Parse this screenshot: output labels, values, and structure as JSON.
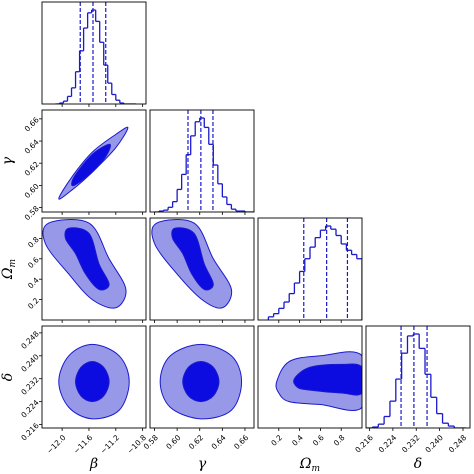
{
  "chart_data": {
    "type": "corner",
    "line_color": "#1a1acc",
    "fill_colors": [
      "#9898e8",
      "#0c0ce0"
    ],
    "parameters": [
      {
        "name": "β",
        "lim": [
          -12.3,
          -10.75
        ],
        "ticks": [
          {
            "value": -12.0,
            "label": "−12.0"
          },
          {
            "value": -11.6,
            "label": "−11.6"
          },
          {
            "value": -11.2,
            "label": "−11.2"
          },
          {
            "value": -10.8,
            "label": "−10.8"
          }
        ],
        "bins": [
          -12.1,
          -12.04,
          -11.98,
          -11.92,
          -11.86,
          -11.8,
          -11.74,
          -11.68,
          -11.62,
          -11.56,
          -11.5,
          -11.44,
          -11.38,
          -11.32,
          -11.26,
          -11.2,
          -11.14,
          -11.08,
          -11.02,
          -10.96,
          -10.9
        ],
        "counts": [
          0,
          1,
          3,
          8,
          17,
          34,
          56,
          80,
          96,
          99,
          87,
          65,
          41,
          22,
          10,
          4,
          1,
          0,
          0,
          0
        ],
        "quantiles": [
          -11.73,
          -11.54,
          -11.35
        ]
      },
      {
        "name": "γ",
        "lim": [
          0.576,
          0.668
        ],
        "ticks": [
          0.58,
          {
            "value": 0.6,
            "label": "0.60"
          },
          0.62,
          0.64,
          0.66
        ],
        "bins": [
          0.58,
          0.584,
          0.588,
          0.592,
          0.596,
          0.6,
          0.604,
          0.608,
          0.612,
          0.616,
          0.62,
          0.624,
          0.628,
          0.632,
          0.636,
          0.64,
          0.644,
          0.648,
          0.652,
          0.656,
          0.66,
          0.664,
          0.668
        ],
        "counts": [
          0,
          1,
          2,
          5,
          11,
          24,
          40,
          61,
          81,
          96,
          100,
          90,
          72,
          50,
          30,
          16,
          8,
          3,
          1,
          1,
          0,
          0
        ],
        "quantiles": [
          0.6096,
          0.621,
          0.6317
        ]
      },
      {
        "name": "Ω",
        "subscript": "m",
        "lim": [
          0,
          1
        ],
        "ticks": [
          0.2,
          0.4,
          0.6,
          0.8
        ],
        "bins": [
          0.1,
          0.15,
          0.2,
          0.25,
          0.3,
          0.35,
          0.4,
          0.45,
          0.5,
          0.55,
          0.6,
          0.65,
          0.7,
          0.75,
          0.8,
          0.85,
          0.9,
          0.95,
          1.0
        ],
        "counts": [
          3,
          6,
          11,
          17,
          25,
          35,
          46,
          58,
          69,
          78,
          85,
          89,
          86,
          80,
          72,
          66,
          62,
          58
        ],
        "quantiles": [
          0.44,
          0.66,
          0.86
        ]
      },
      {
        "name": "δ",
        "lim": [
          0.2148,
          0.2504
        ],
        "ticks": [
          0.216,
          0.224,
          0.232,
          {
            "value": 0.24,
            "label": "0.240"
          },
          0.248
        ],
        "bins": [
          0.215,
          0.217,
          0.219,
          0.221,
          0.223,
          0.225,
          0.227,
          0.229,
          0.231,
          0.233,
          0.235,
          0.237,
          0.239,
          0.241,
          0.243,
          0.245,
          0.247,
          0.249
        ],
        "counts": [
          0,
          1,
          4,
          12,
          28,
          51,
          78,
          96,
          98,
          83,
          56,
          32,
          15,
          5,
          2,
          0,
          0
        ],
        "quantiles": [
          0.2268,
          0.2312,
          0.2357
        ]
      }
    ],
    "contours": [
      {
        "levels": [
          {
            "x": [
              -12.05,
              -11.85,
              -11.55,
              -11.2,
              -11.02,
              -11.2,
              -11.55,
              -11.85
            ],
            "y": [
              0.588,
              0.596,
              0.612,
              0.634,
              0.652,
              0.646,
              0.63,
              0.608
            ]
          },
          {
            "x": [
              -11.82,
              -11.55,
              -11.35,
              -11.28,
              -11.35,
              -11.55,
              -11.75,
              -11.85
            ],
            "y": [
              0.6,
              0.612,
              0.626,
              0.636,
              0.636,
              0.628,
              0.614,
              0.604
            ]
          }
        ]
      },
      {
        "levels": [
          {
            "x": [
              -12.2,
              -11.6,
              -11.3,
              -11.05,
              -11.2,
              -11.55,
              -11.9,
              -12.25
            ],
            "y": [
              0.95,
              0.95,
              0.6,
              0.3,
              0.12,
              0.2,
              0.45,
              0.75
            ]
          },
          {
            "x": [
              -11.9,
              -11.6,
              -11.45,
              -11.3,
              -11.45,
              -11.65,
              -11.8,
              -11.95
            ],
            "y": [
              0.9,
              0.85,
              0.55,
              0.35,
              0.3,
              0.45,
              0.65,
              0.8
            ]
          }
        ]
      },
      {
        "levels": [
          {
            "x": [
              0.582,
              0.615,
              0.632,
              0.648,
              0.64,
              0.622,
              0.6,
              0.58
            ],
            "y": [
              0.95,
              0.95,
              0.6,
              0.3,
              0.12,
              0.2,
              0.45,
              0.75
            ]
          },
          {
            "x": [
              0.598,
              0.615,
              0.624,
              0.632,
              0.624,
              0.613,
              0.605,
              0.596
            ],
            "y": [
              0.9,
              0.85,
              0.55,
              0.35,
              0.3,
              0.45,
              0.65,
              0.8
            ]
          }
        ]
      },
      {
        "levels": [
          {
            "x": [
              -12.05,
              -11.9,
              -11.55,
              -11.15,
              -11.0,
              -11.15,
              -11.55,
              -11.9
            ],
            "y": [
              0.231,
              0.24,
              0.244,
              0.24,
              0.231,
              0.221,
              0.218,
              0.222
            ]
          },
          {
            "x": [
              -11.8,
              -11.72,
              -11.55,
              -11.38,
              -11.3,
              -11.38,
              -11.55,
              -11.72
            ],
            "y": [
              0.231,
              0.236,
              0.238,
              0.236,
              0.231,
              0.226,
              0.224,
              0.226
            ]
          }
        ]
      },
      {
        "levels": [
          {
            "x": [
              0.585,
              0.594,
              0.621,
              0.648,
              0.657,
              0.648,
              0.621,
              0.594
            ],
            "y": [
              0.231,
              0.24,
              0.244,
              0.24,
              0.231,
              0.221,
              0.218,
              0.222
            ]
          },
          {
            "x": [
              0.605,
              0.61,
              0.621,
              0.632,
              0.637,
              0.632,
              0.621,
              0.61
            ],
            "y": [
              0.231,
              0.236,
              0.238,
              0.236,
              0.231,
              0.226,
              0.224,
              0.226
            ]
          }
        ]
      },
      {
        "levels": [
          {
            "x": [
              0.18,
              0.3,
              0.6,
              1.0,
              1.0,
              0.6,
              0.3,
              0.2
            ],
            "y": [
              0.231,
              0.238,
              0.24,
              0.24,
              0.222,
              0.223,
              0.224,
              0.227
            ]
          },
          {
            "x": [
              0.35,
              0.5,
              0.8,
              1.0,
              1.0,
              0.8,
              0.5,
              0.38
            ],
            "y": [
              0.232,
              0.236,
              0.237,
              0.236,
              0.227,
              0.227,
              0.228,
              0.229
            ]
          }
        ]
      }
    ]
  }
}
